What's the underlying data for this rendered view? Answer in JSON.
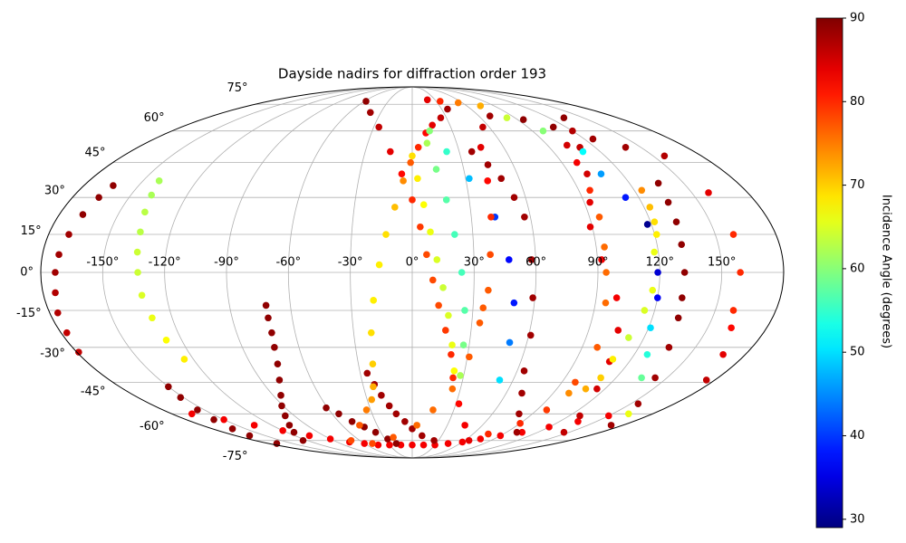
{
  "chart_data": {
    "type": "scatter",
    "projection": "mollweide",
    "title": "Dayside nadirs for diffraction order 193",
    "xlim": [
      -180,
      180
    ],
    "ylim": [
      -90,
      90
    ],
    "grid": true,
    "xticks": [
      {
        "value": -150,
        "label": "-150°"
      },
      {
        "value": -120,
        "label": "-120°"
      },
      {
        "value": -90,
        "label": "-90°"
      },
      {
        "value": -60,
        "label": "-60°"
      },
      {
        "value": -30,
        "label": "-30°"
      },
      {
        "value": 0,
        "label": "0°"
      },
      {
        "value": 30,
        "label": "30°"
      },
      {
        "value": 60,
        "label": "60°"
      },
      {
        "value": 90,
        "label": "90°"
      },
      {
        "value": 120,
        "label": "120°"
      },
      {
        "value": 150,
        "label": "150°"
      }
    ],
    "yticks": [
      {
        "value": -75,
        "label": "-75°"
      },
      {
        "value": -60,
        "label": "-60°"
      },
      {
        "value": -45,
        "label": "-45°"
      },
      {
        "value": -30,
        "label": "-30°"
      },
      {
        "value": -15,
        "label": "-15°"
      },
      {
        "value": 0,
        "label": "0°"
      },
      {
        "value": 15,
        "label": "15°"
      },
      {
        "value": 30,
        "label": "30°"
      },
      {
        "value": 45,
        "label": "45°"
      },
      {
        "value": 60,
        "label": "60°"
      },
      {
        "value": 75,
        "label": "75°"
      }
    ],
    "colorbar": {
      "label": "Incidence Angle (degrees)",
      "colormap": "jet",
      "lim": [
        29,
        90
      ],
      "ticks": [
        30,
        40,
        50,
        60,
        70,
        80,
        90
      ]
    },
    "series": [
      {
        "x": [
          -164,
          -166,
          -168,
          -170,
          -172,
          -173,
          -174,
          -176,
          -177,
          -179
        ],
        "y": [
          35,
          30,
          23,
          15,
          7,
          0,
          -8,
          -16,
          -24,
          -32
        ],
        "values": [
          89,
          89,
          89,
          88,
          88,
          88,
          87,
          87,
          86,
          86
        ]
      },
      {
        "x": [
          -141,
          -139,
          -137,
          -135,
          -134,
          -133,
          -132,
          -130,
          -128,
          -125
        ],
        "y": [
          37,
          31,
          24,
          16,
          8,
          0,
          -9,
          -18,
          -27,
          -35
        ],
        "values": [
          62,
          62,
          63,
          63,
          64,
          64,
          65,
          66,
          67,
          68
        ]
      },
      {
        "x": [
          -150,
          -152,
          -155,
          -158,
          -162,
          -166,
          -170
        ],
        "y": [
          -47,
          -52,
          -58,
          -63,
          -68,
          -72,
          -77
        ],
        "values": [
          89,
          89,
          89,
          89,
          89,
          89,
          89
        ]
      },
      {
        "x": [
          -165,
          -150,
          -135,
          -120,
          -105,
          -90,
          -75,
          -60,
          -45,
          -30,
          -15,
          0,
          15,
          30,
          45,
          60,
          75,
          90,
          105,
          120,
          135,
          150
        ],
        "y": [
          -60,
          -63,
          -66,
          -69,
          -72,
          -74,
          -76,
          -77,
          -78,
          -78,
          -78,
          -78,
          -78,
          -78,
          -77,
          -76,
          -74,
          -72,
          -70,
          -67,
          -64,
          -61
        ],
        "values": [
          83,
          83,
          83,
          83,
          83,
          83,
          83,
          83,
          83,
          83,
          83,
          83,
          83,
          83,
          83,
          83,
          83,
          83,
          83,
          83,
          83,
          83
        ]
      },
      {
        "x": [
          -72,
          -72,
          -72,
          -73,
          -75,
          -79,
          -85,
          -91,
          -97,
          -105,
          -113,
          -125
        ],
        "y": [
          -13,
          -18,
          -24,
          -30,
          -37,
          -44,
          -51,
          -56,
          -61,
          -66,
          -70,
          -75
        ],
        "values": [
          89,
          89,
          89,
          89,
          89,
          89,
          89,
          89,
          89,
          89,
          89,
          89
        ]
      },
      {
        "x": [
          -61,
          -55,
          -49,
          -42,
          -35,
          -27,
          -20
        ],
        "y": [
          -57,
          -60,
          -64,
          -67,
          -70,
          -74,
          -77
        ],
        "values": [
          89,
          89,
          89,
          89,
          89,
          89,
          89
        ]
      },
      {
        "x": [
          -26,
          -23,
          -20,
          -16,
          -12,
          -6,
          0,
          10,
          25
        ],
        "y": [
          -41,
          -46,
          -51,
          -56,
          -60,
          -64,
          -68,
          -72,
          -75
        ],
        "values": [
          88,
          88,
          88,
          88,
          88,
          88,
          88,
          88,
          88
        ]
      },
      {
        "x": [
          -58,
          -40,
          -26,
          -14,
          -6,
          0,
          4,
          7,
          10,
          13,
          17,
          21,
          24,
          32,
          45,
          65
        ],
        "y": [
          77,
          70,
          62,
          50,
          40,
          29,
          18,
          7,
          -3,
          -13,
          -23,
          -33,
          -43,
          -55,
          -66,
          -75
        ],
        "values": [
          89,
          88,
          86,
          84,
          82,
          80,
          79,
          78,
          78,
          78,
          79,
          80,
          80,
          82,
          83,
          84
        ]
      },
      {
        "x": [
          36,
          25,
          16,
          10,
          4,
          -1,
          -5,
          -9,
          -13,
          -16,
          -19,
          -21,
          -22,
          -24,
          -27,
          -33,
          -45,
          -70
        ],
        "y": [
          72,
          67,
          63,
          59,
          52,
          45,
          37,
          26,
          15,
          3,
          -11,
          -24,
          -37,
          -47,
          -53,
          -58,
          -66,
          -75
        ],
        "values": [
          88,
          86,
          84,
          82,
          80,
          77,
          74,
          71,
          69,
          68,
          68,
          69,
          70,
          72,
          73,
          75,
          77,
          78
        ]
      },
      {
        "x": [
          0,
          3,
          6,
          9,
          12,
          15,
          18,
          21,
          24
        ],
        "y": [
          48,
          38,
          27,
          16,
          5,
          -6,
          -17,
          -29,
          -40
        ],
        "values": [
          69,
          68,
          67,
          66,
          65,
          64,
          65,
          66,
          67
        ]
      },
      {
        "x": [
          10,
          14,
          18,
          21,
          24,
          26,
          27,
          28
        ],
        "y": [
          54,
          42,
          29,
          15,
          0,
          -15,
          -29,
          -42
        ],
        "values": [
          62,
          59,
          57,
          56,
          56,
          57,
          59,
          62
        ]
      },
      {
        "x": [
          13,
          22,
          32,
          42,
          47,
          50,
          51,
          52
        ],
        "y": [
          60,
          50,
          38,
          22,
          5,
          -12,
          -28,
          -44
        ],
        "values": [
          60,
          55,
          48,
          40,
          37,
          38,
          44,
          50
        ]
      },
      {
        "x": [
          38,
          45,
          50,
          54,
          57,
          58,
          59,
          61,
          64,
          70,
          80,
          100
        ],
        "y": [
          50,
          44,
          38,
          30,
          22,
          5,
          -10,
          -25,
          -40,
          -50,
          -60,
          -70
        ],
        "values": [
          88,
          88,
          88,
          88,
          88,
          88,
          88,
          88,
          88,
          88,
          88,
          88
        ]
      },
      {
        "x": [
          70,
          55,
          45,
          42,
          40,
          38,
          37,
          35,
          34,
          31,
          25,
          15,
          4,
          -20,
          -50
        ],
        "y": [
          68,
          62,
          52,
          37,
          22,
          7,
          -7,
          -14,
          -20,
          -34,
          -48,
          -58,
          -66,
          -73,
          -77
        ],
        "values": [
          88,
          86,
          84,
          82,
          80,
          78,
          77,
          77,
          77,
          77,
          76,
          76,
          76,
          77,
          78
        ]
      },
      {
        "x": [
          133,
          120,
          110,
          100,
          93,
          89,
          92,
          100,
          105,
          109,
          115,
          128,
          145
        ],
        "y": [
          67,
          60,
          52,
          40,
          28,
          18,
          5,
          -10,
          -23,
          -36,
          -48,
          -61,
          -70
        ],
        "values": [
          89,
          87,
          86,
          85,
          84,
          84,
          83,
          83,
          84,
          84,
          85,
          86,
          86
        ]
      },
      {
        "x": [
          103,
          99,
          96,
          95,
          94,
          94,
          95,
          98,
          98,
          97,
          90,
          75
        ],
        "y": [
          53,
          45,
          33,
          22,
          10,
          0,
          -12,
          -30,
          -45,
          -58,
          -65,
          -71
        ],
        "values": [
          85,
          83,
          80,
          77,
          76,
          76,
          76,
          77,
          78,
          79,
          80,
          80
        ]
      },
      {
        "x": [
          136,
          134,
          133,
          132,
          132,
          132,
          133,
          136,
          143,
          155,
          170
        ],
        "y": [
          36,
          28,
          20,
          11,
          0,
          -10,
          -18,
          -30,
          -43,
          -55,
          -66
        ],
        "values": [
          89,
          89,
          89,
          89,
          89,
          89,
          89,
          88,
          88,
          88,
          88
        ]
      },
      {
        "x": [
          124,
          123,
          122,
          121,
          118,
          117,
          115,
          112,
          110,
          111,
          108,
          100
        ],
        "y": [
          33,
          26,
          20,
          15,
          8,
          -7,
          -15,
          -26,
          -35,
          -43,
          -48,
          -50
        ],
        "values": [
          74,
          71,
          69,
          68,
          66,
          66,
          65,
          64,
          68,
          70,
          72,
          74
        ]
      },
      {
        "x": [
          83,
          98,
          109,
          108,
          113,
          118,
          119,
          120,
          121,
          127,
          135,
          162
        ],
        "y": [
          67,
          60,
          50,
          40,
          30,
          19,
          0,
          -10,
          -22,
          -33,
          -43,
          -60
        ],
        "values": [
          64,
          60,
          52,
          46,
          38,
          30,
          34,
          36,
          50,
          54,
          58,
          66
        ]
      },
      {
        "x": [
          95,
          110,
          126,
          140,
          157,
          159,
          159,
          159,
          159,
          162,
          168,
          175
        ],
        "y": [
          66,
          62,
          56,
          52,
          48,
          32,
          15,
          0,
          -15,
          -22,
          -33,
          -44
        ],
        "values": [
          89,
          89,
          88,
          88,
          87,
          84,
          80,
          80,
          80,
          82,
          84,
          86
        ]
      },
      {
        "x": [
          20,
          35,
          55,
          75
        ],
        "y": [
          78,
          77,
          76,
          74
        ],
        "values": [
          84,
          80,
          75,
          72
        ]
      }
    ]
  }
}
